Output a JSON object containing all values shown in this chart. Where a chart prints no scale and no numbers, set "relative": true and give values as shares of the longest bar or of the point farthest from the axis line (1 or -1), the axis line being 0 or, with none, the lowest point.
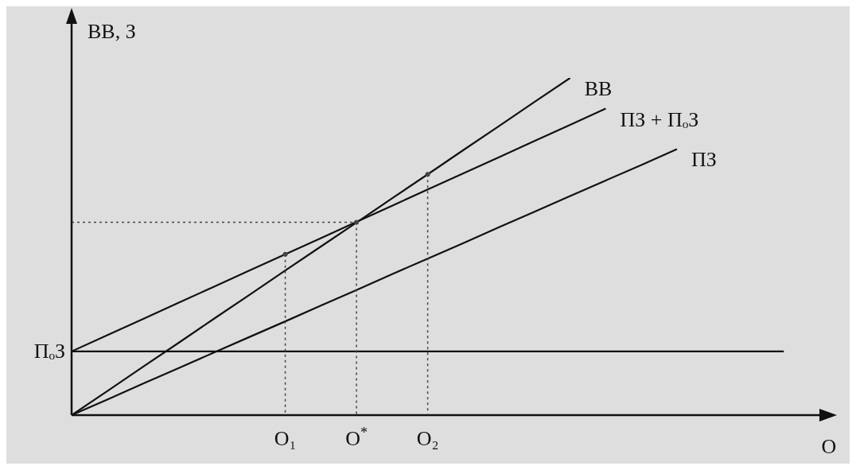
{
  "chart_data": {
    "type": "line",
    "relative": true,
    "xlabel": "О",
    "ylabel": "ВВ, З",
    "categories": [
      null,
      null,
      null,
      null,
      null,
      null,
      "О₁",
      null,
      "О$^{*}$",
      null,
      "О₂",
      null,
      null,
      null,
      null,
      null,
      null,
      null,
      null,
      null,
      null,
      null
    ],
    "marker": "none",
    "grid": false,
    "legend": false,
    "series": [
      {
        "name": "ВВ",
        "color": "#111111",
        "values": [
          0,
          0.071,
          0.143,
          0.214,
          0.286,
          0.357,
          0.429,
          0.5,
          0.571,
          0.643,
          0.714,
          0.786,
          0.857,
          0.929,
          1,
          null,
          null,
          null,
          null,
          null,
          null,
          null
        ]
      },
      {
        "name": "ПЗ + ПₒЗ",
        "color": "#111111",
        "values": [
          0.189,
          0.237,
          0.285,
          0.333,
          0.381,
          0.429,
          0.477,
          0.525,
          0.573,
          0.621,
          0.669,
          0.717,
          0.765,
          0.813,
          0.861,
          0.909,
          null,
          null,
          null,
          null,
          null,
          null
        ]
      },
      {
        "name": "ПЗ",
        "color": "#111111",
        "values": [
          0,
          0.046,
          0.093,
          0.139,
          0.186,
          0.232,
          0.278,
          0.325,
          0.371,
          0.418,
          0.464,
          0.51,
          0.557,
          0.603,
          0.65,
          0.696,
          0.742,
          0.789,
          null,
          null,
          null,
          null
        ]
      },
      {
        "name": "ПₒЗ",
        "color": "#111111",
        "values": [
          0.189,
          0.189,
          0.189,
          0.189,
          0.189,
          0.189,
          0.189,
          0.189,
          0.189,
          0.189,
          0.189,
          0.189,
          0.189,
          0.189,
          0.189,
          0.189,
          0.189,
          0.189,
          0.189,
          0.189,
          0.189,
          null
        ]
      },
      {
        "type": "lollipop",
        "marker": "circle",
        "color": "#444444",
        "line_style": "dotted",
        "values": [
          null,
          null,
          null,
          null,
          null,
          null,
          0.477,
          null,
          0.572,
          null,
          0.714,
          null,
          null,
          null,
          null,
          null,
          null,
          null,
          null,
          null,
          null,
          null
        ]
      },
      {
        "color": "#444444",
        "line_style": "dotted",
        "values": [
          0.572,
          0.572,
          0.572,
          0.572,
          0.572,
          0.572,
          0.572,
          0.572,
          0.572,
          null,
          null,
          null,
          null,
          null,
          null,
          null,
          null,
          null,
          null,
          null,
          null,
          null
        ]
      }
    ]
  }
}
